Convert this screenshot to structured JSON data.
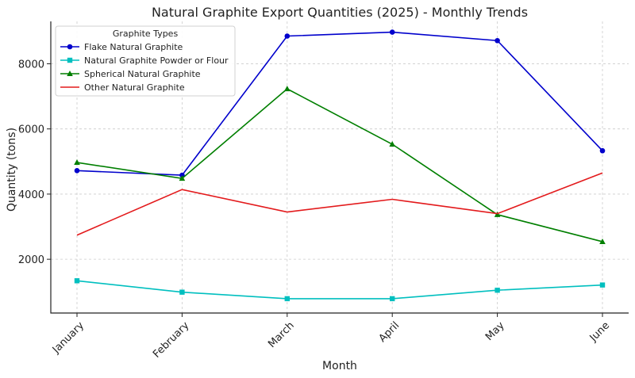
{
  "chart_data": {
    "type": "line",
    "title": "Natural Graphite Export Quantities (2025) - Monthly Trends",
    "xlabel": "Month",
    "ylabel": "Quantity (tons)",
    "categories": [
      "January",
      "February",
      "March",
      "April",
      "May",
      "June"
    ],
    "ylim": [
      350,
      9300
    ],
    "yticks": [
      2000,
      4000,
      6000,
      8000
    ],
    "grid": true,
    "legend": {
      "title": "Graphite Types",
      "placement": "top-left"
    },
    "series": [
      {
        "name": "Flake Natural Graphite",
        "color": "#0000cc",
        "marker": "circle",
        "values": [
          4720,
          4580,
          8850,
          8970,
          8710,
          5330
        ]
      },
      {
        "name": "Natural Graphite Powder or Flour",
        "color": "#00bfbf",
        "marker": "square",
        "values": [
          1340,
          990,
          790,
          790,
          1050,
          1210
        ]
      },
      {
        "name": "Spherical Natural Graphite",
        "color": "#007f00",
        "marker": "triangle",
        "values": [
          4970,
          4480,
          7230,
          5530,
          3370,
          2540
        ]
      },
      {
        "name": "Other Natural Graphite",
        "color": "#e31a1c",
        "marker": "none",
        "values": [
          2740,
          4140,
          3450,
          3840,
          3400,
          4650
        ]
      }
    ]
  }
}
